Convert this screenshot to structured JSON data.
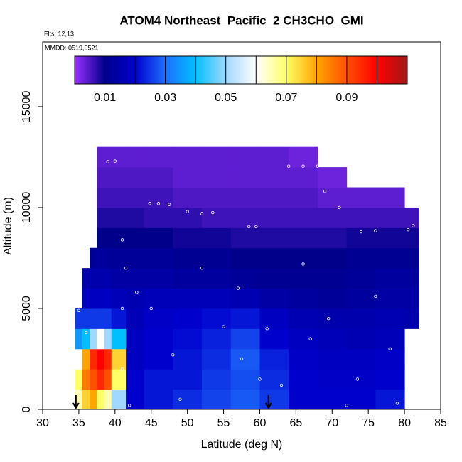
{
  "chart_data": {
    "type": "heatmap",
    "title": "ATOM4 Northeast_Pacific_2 CH3CHO_GMI",
    "subtitle": "Flts: 12,13",
    "annotation": "MMDD: 0519,0521",
    "xlabel": "Latitude (deg N)",
    "ylabel": "Altitude (m)",
    "xlim": [
      30,
      85
    ],
    "xticks": [
      30,
      35,
      40,
      45,
      50,
      55,
      60,
      65,
      70,
      75,
      80,
      85
    ],
    "ylim": [
      0,
      18200
    ],
    "yticks": [
      0,
      5000,
      10000,
      15000
    ],
    "xbins": [
      34.5,
      35.5,
      36.5,
      37.5,
      38.5,
      39.5,
      41.5,
      44,
      48,
      52,
      56,
      60,
      64,
      68,
      72,
      76,
      80,
      82
    ],
    "ybins": [
      0,
      1000,
      2000,
      3000,
      4000,
      5000,
      6000,
      7000,
      8000,
      9000,
      10000,
      11000,
      12000,
      13000
    ],
    "z": [
      [
        0.065,
        0.07,
        0.06,
        0.035,
        0.025,
        null,
        null,
        null,
        null,
        null,
        null,
        null,
        null
      ],
      [
        0.075,
        0.085,
        0.08,
        0.04,
        0.025,
        0.018,
        0.015,
        null,
        null,
        null,
        null,
        null,
        null
      ],
      [
        0.08,
        0.09,
        0.095,
        0.05,
        0.025,
        0.018,
        0.015,
        0.012,
        null,
        null,
        null,
        null,
        null
      ],
      [
        0.07,
        0.095,
        0.1,
        0.06,
        0.025,
        0.018,
        0.015,
        0.013,
        0.01,
        0.008,
        0.006,
        0.005,
        0.004
      ],
      [
        0.065,
        0.09,
        0.095,
        0.05,
        0.025,
        0.018,
        0.015,
        0.012,
        0.01,
        0.008,
        0.006,
        0.005,
        0.004
      ],
      [
        0.05,
        0.07,
        0.075,
        0.04,
        0.022,
        0.017,
        0.014,
        0.012,
        0.01,
        0.008,
        0.006,
        0.005,
        0.004
      ],
      [
        0.02,
        0.02,
        0.018,
        0.018,
        0.017,
        0.016,
        0.014,
        0.012,
        0.01,
        0.008,
        0.006,
        0.005,
        0.004
      ],
      [
        0.022,
        0.022,
        0.02,
        0.02,
        0.019,
        0.017,
        0.014,
        0.012,
        0.01,
        0.007,
        0.006,
        0.005,
        0.004
      ],
      [
        0.024,
        0.022,
        0.022,
        0.021,
        0.02,
        0.017,
        0.013,
        0.011,
        0.009,
        0.007,
        0.005,
        0.004,
        0.004
      ],
      [
        0.026,
        0.025,
        0.024,
        0.023,
        0.021,
        0.017,
        0.013,
        0.011,
        0.009,
        0.006,
        0.005,
        0.004,
        0.004
      ],
      [
        0.028,
        0.027,
        0.028,
        0.026,
        0.022,
        0.016,
        0.012,
        0.01,
        0.008,
        0.006,
        0.005,
        0.004,
        0.004
      ],
      [
        0.025,
        0.024,
        0.023,
        0.02,
        0.018,
        0.014,
        0.011,
        0.01,
        0.008,
        0.006,
        0.005,
        0.004,
        0.004
      ],
      [
        0.02,
        0.02,
        0.019,
        0.018,
        0.016,
        0.013,
        0.011,
        0.01,
        0.008,
        0.006,
        0.005,
        0.004,
        0.003
      ],
      [
        0.02,
        0.019,
        0.018,
        0.017,
        0.015,
        0.012,
        0.011,
        0.01,
        0.008,
        0.006,
        0.004,
        0.003,
        null
      ],
      [
        0.02,
        0.019,
        0.018,
        0.016,
        0.015,
        0.013,
        0.012,
        0.011,
        0.009,
        0.006,
        0.004,
        null,
        null
      ],
      [
        0.022,
        0.02,
        0.019,
        0.017,
        0.016,
        0.014,
        0.013,
        0.011,
        0.009,
        0.006,
        0.004,
        null,
        null
      ],
      [
        null,
        null,
        null,
        null,
        0.015,
        0.014,
        0.013,
        0.011,
        0.009,
        0.006,
        null,
        null,
        null
      ]
    ],
    "zlim": [
      0,
      0.11
    ],
    "zticks": [
      0.01,
      0.03,
      0.05,
      0.07,
      0.09
    ],
    "colors": [
      "#9b30ff",
      "#00008b",
      "#0000cd",
      "#1e6fff",
      "#00bfff",
      "#a0d8ff",
      "#ffffff",
      "#ffff66",
      "#ffa500",
      "#ff5000",
      "#ff0000",
      "#a01818"
    ],
    "track": {
      "x": [
        39,
        40,
        44.8,
        46,
        47.5,
        50,
        52,
        53.5,
        58.5,
        59.5,
        64,
        66,
        68,
        69,
        71,
        74,
        76,
        80.5,
        81.2,
        35,
        36,
        41,
        41.5,
        41,
        41,
        42,
        43,
        45,
        48,
        49,
        52,
        55,
        57,
        57.5,
        60,
        61,
        63,
        66,
        67,
        69.5,
        72,
        73.5,
        76,
        79,
        78
      ],
      "y": [
        12270,
        12300,
        10200,
        10200,
        10150,
        9800,
        9700,
        9750,
        9050,
        9050,
        12050,
        12050,
        12050,
        10800,
        10000,
        8800,
        8850,
        8900,
        9100,
        4900,
        3800,
        8400,
        7000,
        5000,
        2000,
        200,
        5800,
        5000,
        2700,
        500,
        7000,
        4100,
        6000,
        2500,
        1500,
        4000,
        1200,
        7200,
        3500,
        4500,
        200,
        1500,
        5600,
        300,
        3000
      ]
    },
    "arrows": [
      34.6,
      61.2
    ]
  }
}
